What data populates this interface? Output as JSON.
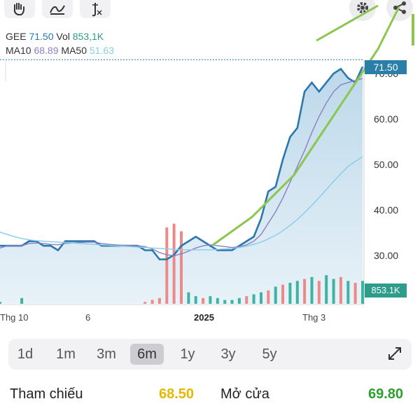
{
  "toolbar": {
    "icons": [
      "hand-icon",
      "curve-icon",
      "function-icon",
      "gear-icon",
      "share-icon"
    ]
  },
  "legend": {
    "ticker": "GEE",
    "price": "71.50",
    "vol_label": "Vol",
    "vol": "853,1K",
    "ma10_label": "MA10",
    "ma10": "68.89",
    "ma50_label": "MA50",
    "ma50": "51.63"
  },
  "price_tag": "71.50",
  "volume_tag": "853.1K",
  "y_axis": [
    "70.00",
    "60.00",
    "50.00",
    "40.00",
    "30.00"
  ],
  "x_axis": [
    "Thg 10",
    "6",
    "2025",
    "Thg 3"
  ],
  "periods": [
    "1d",
    "1m",
    "3m",
    "6m",
    "1y",
    "3y",
    "5y"
  ],
  "active_period": "6m",
  "stats": {
    "ref_label": "Tham chiếu",
    "ref_value": "68.50",
    "open_label": "Mở cửa",
    "open_value": "69.80"
  },
  "colors": {
    "price_line": "#2a77ad",
    "ma10": "#8a7fc0",
    "ma50": "#86cde8",
    "trend": "#8cc54f",
    "vol_up": "#3fb3a2",
    "vol_down": "#ec8a8a",
    "ref": "#e6b800",
    "open": "#2ca02c"
  },
  "chart_data": {
    "type": "line",
    "series": [
      {
        "name": "GEE",
        "values": [
          32,
          32,
          32,
          32,
          33,
          33,
          32,
          32,
          31,
          33,
          33,
          33,
          33,
          33,
          32,
          32,
          32,
          32,
          32,
          32,
          31,
          31,
          29,
          29,
          30,
          32,
          33,
          34,
          33,
          32,
          31,
          31,
          31,
          32,
          33,
          34,
          38,
          44,
          45,
          51,
          56,
          58,
          66,
          68,
          66,
          68,
          70,
          71,
          69,
          68,
          71.5
        ]
      },
      {
        "name": "MA10",
        "values": [
          31.5,
          32,
          32,
          32,
          32.5,
          32.6,
          32.5,
          32.3,
          32.2,
          32.5,
          32.6,
          32.7,
          32.8,
          32.8,
          32.5,
          32.3,
          32.2,
          32.1,
          32,
          32,
          31.8,
          31.3,
          30.5,
          30,
          29.8,
          30.2,
          30.8,
          31.5,
          32,
          32.2,
          32,
          31.8,
          31.6,
          31.8,
          32.2,
          33,
          34.5,
          37,
          39.5,
          42.5,
          46,
          49.5,
          53,
          57,
          60.5,
          63.5,
          66,
          67.5,
          68,
          68.5,
          68.89
        ]
      },
      {
        "name": "MA50",
        "values": [
          35,
          34.5,
          34,
          33.6,
          33.3,
          33.1,
          33,
          32.9,
          32.8,
          32.7,
          32.6,
          32.5,
          32.4,
          32.3,
          32.2,
          32.1,
          32,
          31.9,
          31.8,
          31.7,
          31.6,
          31.5,
          31.4,
          31.3,
          31.2,
          31.1,
          31.1,
          31.1,
          31.1,
          31.1,
          31.2,
          31.3,
          31.4,
          31.6,
          31.9,
          32.3,
          32.8,
          33.5,
          34.3,
          35.3,
          36.5,
          37.8,
          39.3,
          40.9,
          42.6,
          44.4,
          46.2,
          47.9,
          49.5,
          50.6,
          51.63
        ]
      }
    ],
    "volume": [
      1,
      0,
      0,
      3,
      0,
      0,
      0,
      0,
      0,
      0,
      0,
      0,
      0,
      0,
      0,
      0,
      0,
      0,
      0,
      0,
      1,
      2,
      3,
      40,
      42,
      38,
      6,
      4,
      3,
      4,
      3,
      2,
      2,
      3,
      4,
      5,
      6,
      7,
      9,
      10,
      11,
      12,
      13,
      14,
      12,
      15,
      13,
      14,
      12,
      11,
      12
    ],
    "volume_up": [
      true,
      true,
      true,
      true,
      true,
      true,
      true,
      true,
      true,
      true,
      true,
      true,
      true,
      true,
      true,
      true,
      true,
      true,
      true,
      true,
      false,
      false,
      false,
      false,
      false,
      false,
      true,
      true,
      false,
      true,
      true,
      true,
      true,
      true,
      false,
      true,
      true,
      false,
      true,
      false,
      true,
      true,
      false,
      true,
      false,
      true,
      true,
      false,
      true,
      false,
      true
    ],
    "ylim": [
      28,
      75
    ],
    "x_labels": [
      "Thg 10",
      "6",
      "2025",
      "Thg 3"
    ]
  }
}
